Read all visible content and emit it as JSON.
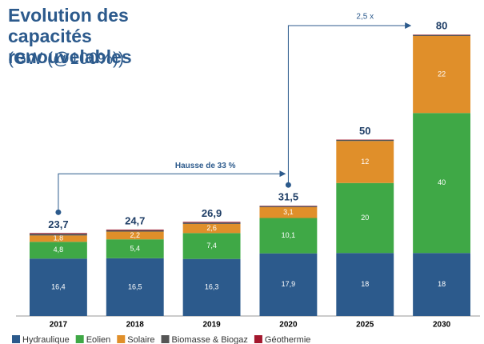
{
  "chart_data": {
    "type": "stacked_bar",
    "title": "Evolution des capacités renouvelables",
    "subtitle": "(GW (@100%))",
    "categories": [
      "2017",
      "2018",
      "2019",
      "2020",
      "2025",
      "2030"
    ],
    "series": [
      {
        "name": "Hydraulique",
        "color": "#2c5a8c",
        "values": [
          16.4,
          16.5,
          16.3,
          17.9,
          18,
          18
        ],
        "value_labels": [
          "16,4",
          "16,5",
          "16,3",
          "17,9",
          "18",
          "18"
        ]
      },
      {
        "name": "Eolien",
        "color": "#3fa846",
        "values": [
          4.8,
          5.4,
          7.4,
          10.1,
          20,
          40
        ],
        "value_labels": [
          "4,8",
          "5,4",
          "7,4",
          "10,1",
          "20",
          "40"
        ]
      },
      {
        "name": "Solaire",
        "color": "#e08f2a",
        "values": [
          1.8,
          2.2,
          2.6,
          3.1,
          12,
          22
        ],
        "value_labels": [
          "1,8",
          "2,2",
          "2,6",
          "3,1",
          "12",
          "22"
        ]
      },
      {
        "name": "Biomasse & Biogaz",
        "color": "#555555",
        "values": [
          0.5,
          0.4,
          0.4,
          0.3,
          0.3,
          0.3
        ]
      },
      {
        "name": "Géothermie",
        "color": "#a3172d",
        "values": [
          0.2,
          0.2,
          0.2,
          0.1,
          0.1,
          0.1
        ]
      }
    ],
    "totals": [
      23.7,
      24.7,
      26.9,
      31.5,
      50,
      80
    ],
    "total_labels": [
      "23,7",
      "24,7",
      "26,9",
      "31,5",
      "50",
      "80"
    ],
    "annotations": [
      "Hausse de 33 %",
      "2,5 x"
    ],
    "ylim": [
      0,
      80
    ]
  }
}
